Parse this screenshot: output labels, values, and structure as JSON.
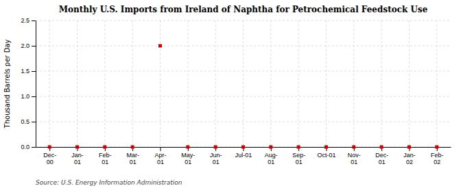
{
  "chart_data": {
    "type": "scatter",
    "title": "Monthly U.S. Imports from Ireland of Naphtha for Petrochemical Feedstock Use",
    "y_label": "Thousand Barrels per Day",
    "annotations": [
      "Source: U.S. Energy Information Administration"
    ],
    "categories": [
      "Dec-\n00",
      "Jan-\n01",
      "Feb-\n01",
      "Mar-\n01",
      "Apr-\n01",
      "May-\n01",
      "Jun-\n01",
      "Jul-01",
      "Aug-\n01",
      "Sep-\n01",
      "Oct-01",
      "Nov-\n01",
      "Dec-\n01",
      "Jan-\n02",
      "Feb-\n02"
    ],
    "values": [
      0.0,
      0.0,
      0.0,
      0.0,
      2.0,
      0.0,
      0.0,
      0.0,
      0.0,
      0.0,
      0.0,
      0.0,
      0.0,
      0.0,
      0.0
    ],
    "color": "#cc0000",
    "marker": "square",
    "ylim": [
      0.0,
      2.5
    ],
    "yticks": [
      {
        "value": 0.0,
        "label": "0.0"
      },
      0.5,
      {
        "value": 1.0,
        "label": "1.0"
      },
      1.5,
      {
        "value": 2.0,
        "label": "2.0"
      },
      2.5
    ],
    "grid": true
  }
}
